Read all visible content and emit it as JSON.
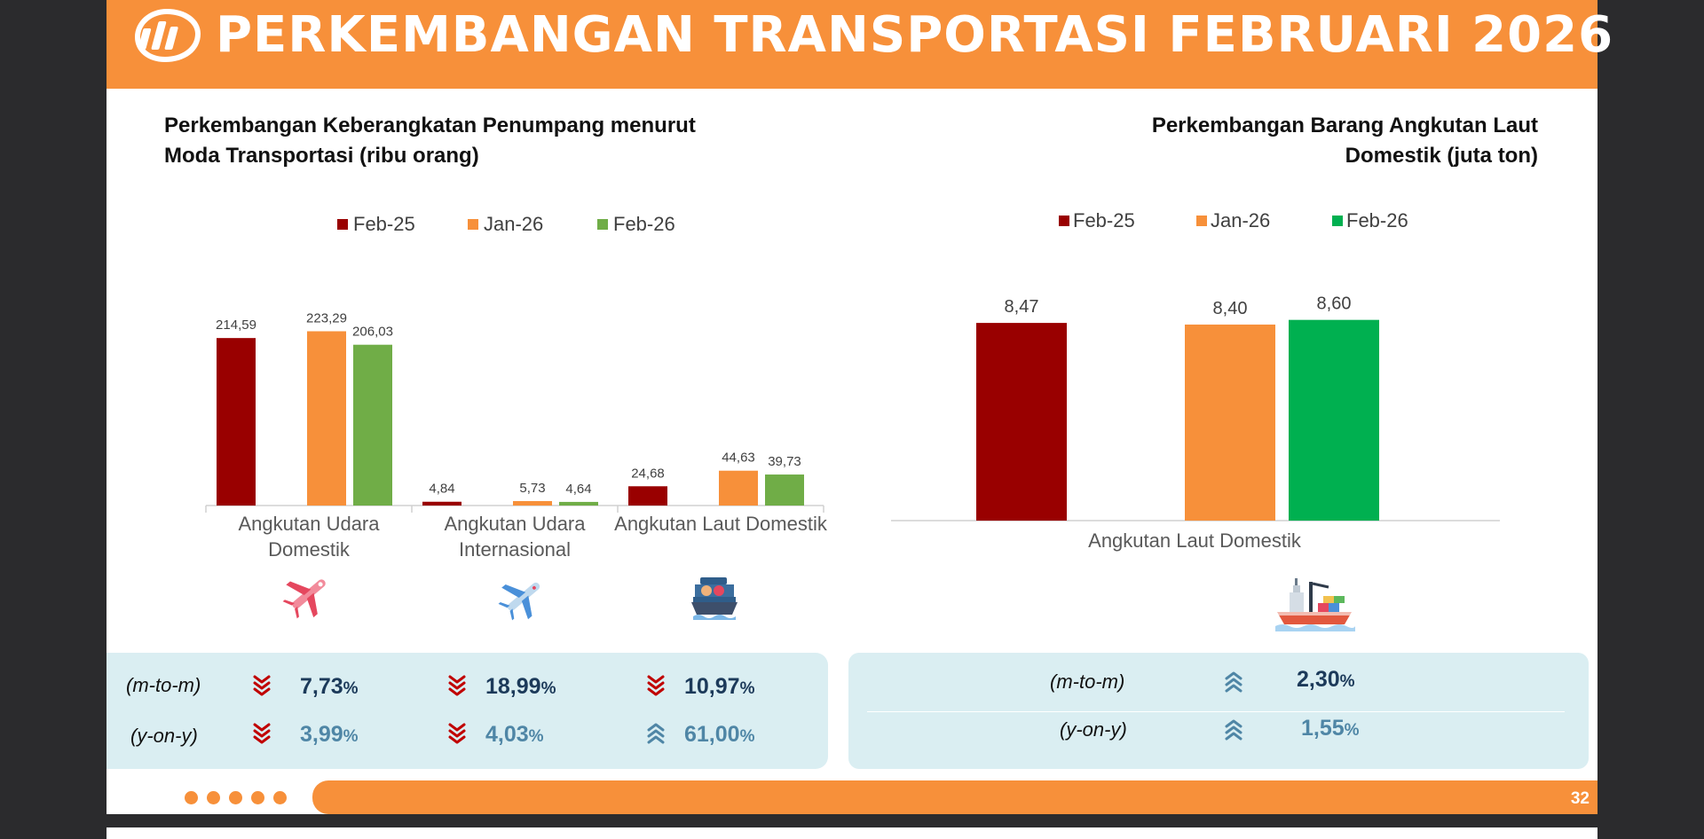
{
  "header": {
    "title": "PERKEMBANGAN TRANSPORTASI FEBRUARI 2026"
  },
  "colors": {
    "orange": "#f7903a",
    "feb25": "#990000",
    "jan26": "#f7903a",
    "feb26_left": "#70ad47",
    "feb26_right": "#00b050",
    "panel": "#daeef2",
    "down": "#c00000",
    "up": "#4f86a6"
  },
  "left_chart": {
    "title_line1": "Perkembangan Keberangkatan Penumpang menurut",
    "title_line2": "Moda Transportasi (ribu orang)",
    "icons": [
      "airplane-icon",
      "airplane-icon",
      "ferry-icon"
    ]
  },
  "right_chart": {
    "title_line1": "Perkembangan Barang Angkutan Laut",
    "title_line2": "Domestik (juta ton)",
    "icon": "cargo-ship-icon"
  },
  "chart_data": [
    {
      "type": "bar",
      "title": "Perkembangan Keberangkatan Penumpang menurut Moda Transportasi (ribu orang)",
      "categories": [
        "Angkutan Udara Domestik",
        "Angkutan Udara Internasional",
        "Angkutan Laut Domestik"
      ],
      "category_lines": [
        [
          "Angkutan Udara",
          "Domestik"
        ],
        [
          "Angkutan Udara",
          "Internasional"
        ],
        [
          "Angkutan Laut Domestik"
        ]
      ],
      "series": [
        {
          "name": "Feb-25",
          "values": [
            214.59,
            4.84,
            24.68
          ],
          "labels": [
            "214,59",
            "4,84",
            "24,68"
          ]
        },
        {
          "name": "Jan-26",
          "values": [
            223.29,
            5.73,
            44.63
          ],
          "labels": [
            "223,29",
            "5,73",
            "44,63"
          ]
        },
        {
          "name": "Feb-26",
          "values": [
            206.03,
            4.64,
            39.73
          ],
          "labels": [
            "206,03",
            "4,64",
            "39,73"
          ]
        }
      ],
      "legend_position": "top",
      "ylim": [
        0,
        250
      ]
    },
    {
      "type": "bar",
      "title": "Perkembangan Barang Angkutan Laut Domestik (juta ton)",
      "categories": [
        "Angkutan Laut Domestik"
      ],
      "series": [
        {
          "name": "Feb-25",
          "values": [
            8.47
          ],
          "labels": [
            "8,47"
          ]
        },
        {
          "name": "Jan-26",
          "values": [
            8.4
          ],
          "labels": [
            "8,40"
          ]
        },
        {
          "name": "Feb-26",
          "values": [
            8.6
          ],
          "labels": [
            "8,60"
          ]
        }
      ],
      "legend_position": "top",
      "ylim": [
        0,
        9.5
      ]
    }
  ],
  "stats_left": {
    "mtm_label": "(m-to-m)",
    "yoy_label": "(y-on-y)",
    "mtm": [
      {
        "value": "7,73",
        "pct": "%",
        "dir": "down"
      },
      {
        "value": "18,99",
        "pct": "%",
        "dir": "down"
      },
      {
        "value": "10,97",
        "pct": "%",
        "dir": "down"
      }
    ],
    "yoy": [
      {
        "value": "3,99",
        "pct": "%",
        "dir": "down"
      },
      {
        "value": "4,03",
        "pct": "%",
        "dir": "down"
      },
      {
        "value": "61,00",
        "pct": "%",
        "dir": "up"
      }
    ]
  },
  "stats_right": {
    "mtm_label": "(m-to-m)",
    "yoy_label": "(y-on-y)",
    "mtm": {
      "value": "2,30",
      "pct": "%",
      "dir": "up"
    },
    "yoy": {
      "value": "1,55",
      "pct": "%",
      "dir": "up"
    }
  },
  "footer": {
    "page_number": "32"
  }
}
